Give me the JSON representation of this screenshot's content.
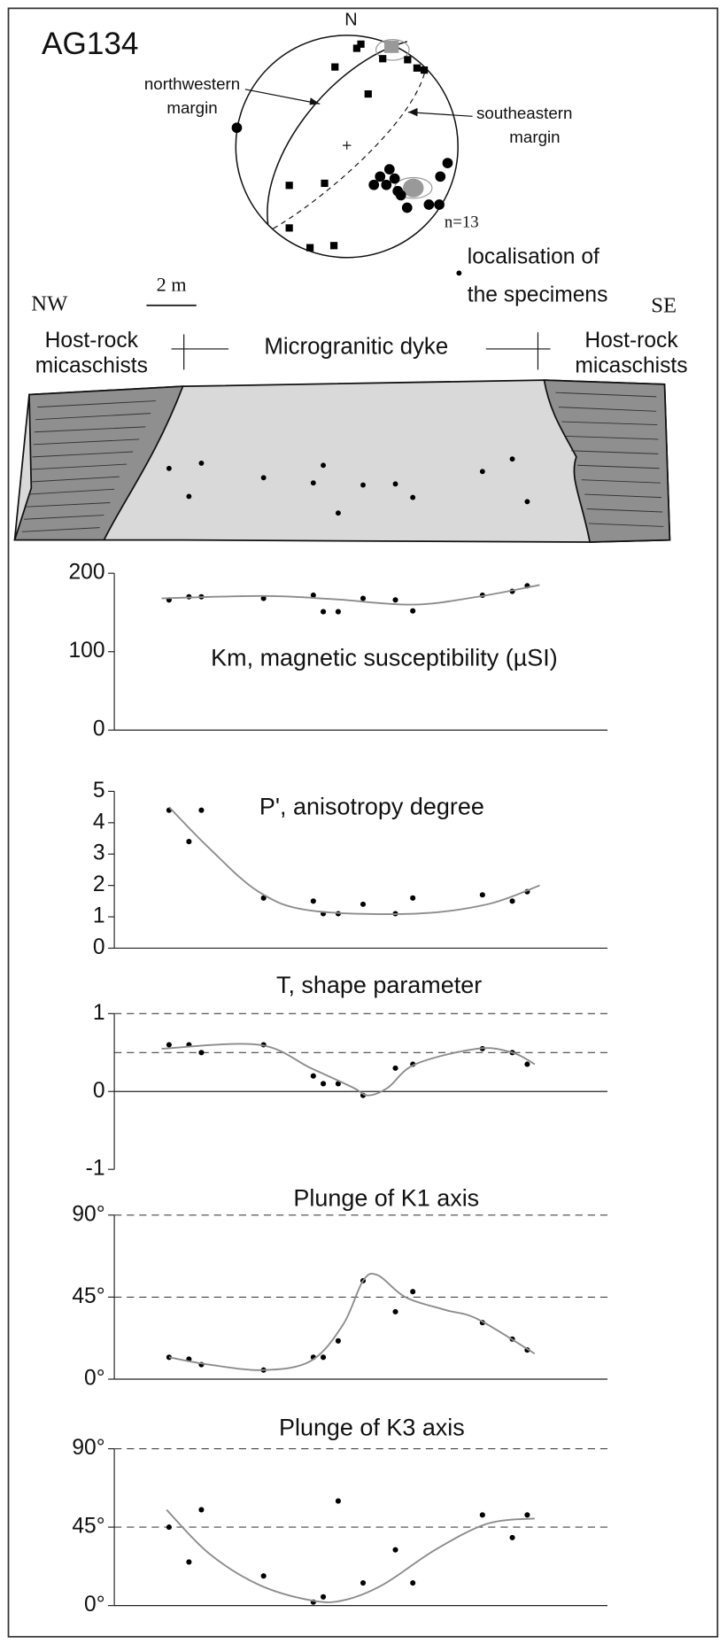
{
  "figure_title": "AG134",
  "stereonet": {
    "north": "N",
    "nw_margin": [
      "northwestern",
      "margin"
    ],
    "se_margin": [
      "southeastern",
      "margin"
    ],
    "count": "n=13",
    "specimen_note": [
      "localisation of",
      "the specimens"
    ]
  },
  "section": {
    "scale": "2 m",
    "left_end": "NW",
    "right_end": "SE",
    "left_unit": [
      "Host-rock",
      "micaschists"
    ],
    "center_unit": "Micrograniti​c dyke",
    "right_unit": [
      "Host-rock",
      "micaschists"
    ]
  },
  "chart_data": [
    {
      "type": "scatter",
      "title": "Km, magnetic susceptibility (µSI)",
      "xlim": [
        0,
        19.2
      ],
      "x": [
        2.2,
        3.0,
        3.5,
        6.0,
        8.0,
        8.4,
        9.0,
        10.0,
        11.3,
        12.0,
        14.8,
        16.0,
        16.6
      ],
      "ylim": [
        0,
        200
      ],
      "yticks": [
        0,
        100,
        200
      ],
      "series": [
        {
          "type": "scatter",
          "color": "#000000",
          "values": [
            166,
            170,
            170,
            168,
            172,
            151,
            151,
            168,
            166,
            152,
            172,
            177,
            184
          ]
        },
        {
          "type": "line",
          "color": "#8c8c8c",
          "x": [
            1.9,
            6.0,
            8.8,
            12.0,
            14.6,
            17.1
          ],
          "values": [
            168,
            171,
            167,
            160,
            170,
            185
          ]
        }
      ]
    },
    {
      "type": "scatter",
      "title": "P', anisotropy degree",
      "xlim": [
        0,
        19.2
      ],
      "x": [
        2.2,
        3.0,
        3.5,
        6.0,
        8.0,
        8.4,
        9.0,
        10.0,
        11.3,
        12.0,
        14.8,
        16.0,
        16.6
      ],
      "ylim": [
        0,
        5
      ],
      "yticks": [
        0,
        1,
        2,
        3,
        4,
        5
      ],
      "series": [
        {
          "type": "scatter",
          "color": "#000000",
          "values": [
            4.4,
            3.4,
            4.4,
            1.6,
            1.5,
            1.1,
            1.1,
            1.4,
            1.1,
            1.6,
            1.7,
            1.5,
            1.8
          ]
        },
        {
          "type": "line",
          "color": "#8c8c8c",
          "x": [
            2.2,
            3.8,
            5.8,
            7.9,
            12.1,
            15.0,
            17.1
          ],
          "values": [
            4.5,
            3.2,
            1.8,
            1.2,
            1.1,
            1.4,
            2.0
          ]
        }
      ]
    },
    {
      "type": "scatter",
      "title": "T, shape parameter",
      "xlim": [
        0,
        19.2
      ],
      "x": [
        2.2,
        3.0,
        3.5,
        6.0,
        8.0,
        8.4,
        9.0,
        10.0,
        11.3,
        12.0,
        14.8,
        16.0,
        16.6
      ],
      "ylim": [
        -1,
        1
      ],
      "yticks": [
        -1,
        0,
        1
      ],
      "dashed_lines": [
        1,
        0.5
      ],
      "series": [
        {
          "type": "scatter",
          "color": "#000000",
          "values": [
            0.6,
            0.6,
            0.5,
            0.6,
            0.2,
            0.1,
            0.1,
            -0.05,
            0.3,
            0.35,
            0.55,
            0.5,
            0.35
          ]
        },
        {
          "type": "line",
          "color": "#8c8c8c",
          "x": [
            1.9,
            5.8,
            7.9,
            9.6,
            10.2,
            11.0,
            12.1,
            14.6,
            16.0,
            16.9
          ],
          "values": [
            0.55,
            0.6,
            0.3,
            0.05,
            -0.05,
            0.05,
            0.35,
            0.55,
            0.5,
            0.35
          ]
        }
      ]
    },
    {
      "type": "scatter",
      "title": "Plunge of K1 axis",
      "xlim": [
        0,
        19.2
      ],
      "x": [
        2.2,
        3.0,
        3.5,
        6.0,
        8.0,
        8.4,
        9.0,
        10.0,
        11.3,
        12.0,
        14.8,
        16.0,
        16.6
      ],
      "ylim": [
        0,
        90
      ],
      "yticks": [
        {
          "value": 0,
          "label": "0°"
        },
        {
          "value": 45,
          "label": "45°"
        },
        {
          "value": 90,
          "label": "90°"
        }
      ],
      "dashed_lines": [
        90,
        45
      ],
      "series": [
        {
          "type": "scatter",
          "color": "#000000",
          "values": [
            12,
            11,
            8,
            5,
            12,
            12,
            21,
            54,
            37,
            48,
            31,
            22,
            16
          ]
        },
        {
          "type": "line",
          "color": "#8c8c8c",
          "x": [
            2.2,
            3.8,
            6.0,
            7.9,
            9.2,
            10.0,
            10.6,
            11.7,
            13.3,
            14.6,
            16.9
          ],
          "values": [
            12,
            8,
            5,
            10,
            30,
            54,
            57,
            45,
            38,
            33,
            14
          ]
        }
      ]
    },
    {
      "type": "scatter",
      "title": "Plunge of K3 axis",
      "xlim": [
        0,
        19.2
      ],
      "x": [
        2.2,
        3.0,
        3.5,
        6.0,
        8.0,
        8.4,
        9.0,
        10.0,
        11.3,
        12.0,
        14.8,
        16.0,
        16.6
      ],
      "ylim": [
        0,
        90
      ],
      "yticks": [
        {
          "value": 0,
          "label": "0°"
        },
        {
          "value": 45,
          "label": "45°"
        },
        {
          "value": 90,
          "label": "90°"
        }
      ],
      "dashed_lines": [
        90,
        45
      ],
      "series": [
        {
          "type": "scatter",
          "color": "#000000",
          "values": [
            45,
            25,
            55,
            17,
            2,
            5,
            60,
            13,
            32,
            13,
            52,
            39,
            52
          ]
        },
        {
          "type": "line",
          "color": "#8c8c8c",
          "x": [
            2.1,
            3.8,
            5.8,
            7.9,
            9.2,
            10.8,
            12.9,
            15.0,
            16.9
          ],
          "values": [
            55,
            30,
            12,
            3,
            3,
            12,
            32,
            47,
            50
          ]
        }
      ]
    }
  ]
}
